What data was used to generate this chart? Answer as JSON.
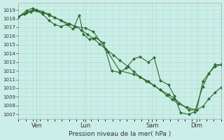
{
  "bg_color": "#cceee8",
  "grid_color": "#aaddcc",
  "line_color": "#2d6a2d",
  "xlabel": "Pression niveau de la mer( hPa )",
  "ylim": [
    1006.5,
    1019.8
  ],
  "yticks": [
    1007,
    1008,
    1009,
    1010,
    1011,
    1012,
    1013,
    1014,
    1015,
    1016,
    1017,
    1018,
    1019
  ],
  "xtick_labels": [
    "Ven",
    "Lun",
    "Sam",
    "Dim"
  ],
  "xtick_positions": [
    0.09,
    0.33,
    0.66,
    0.88
  ],
  "lines": [
    {
      "x": [
        0.0,
        0.03,
        0.06,
        0.09,
        0.12,
        0.15,
        0.18,
        0.21,
        0.25,
        0.28,
        0.31,
        0.34,
        0.37,
        0.4,
        0.43,
        0.47,
        0.5,
        0.54,
        0.57,
        0.6,
        0.63,
        0.67,
        0.7,
        0.73,
        0.76,
        0.79,
        0.83,
        0.88,
        0.91,
        0.94,
        0.97,
        1.0
      ],
      "y": [
        1018.2,
        1018.5,
        1018.8,
        1018.9,
        1018.7,
        1018.4,
        1018.1,
        1017.8,
        1017.4,
        1017.1,
        1016.7,
        1016.2,
        1015.7,
        1015.1,
        1014.5,
        1013.8,
        1013.2,
        1012.5,
        1011.9,
        1011.3,
        1010.8,
        1010.3,
        1009.8,
        1009.2,
        1008.7,
        1008.2,
        1007.8,
        1007.5,
        1007.9,
        1008.8,
        1009.5,
        1010.1
      ]
    },
    {
      "x": [
        0.0,
        0.04,
        0.07,
        0.09,
        0.12,
        0.15,
        0.18,
        0.21,
        0.24,
        0.27,
        0.3,
        0.32,
        0.35,
        0.38,
        0.42,
        0.46,
        0.5,
        0.53,
        0.57,
        0.6,
        0.64,
        0.67,
        0.7,
        0.74,
        0.77,
        0.8,
        0.84,
        0.87,
        0.91,
        0.94,
        0.97,
        1.0
      ],
      "y": [
        1018.2,
        1018.9,
        1019.2,
        1019.0,
        1018.8,
        1018.5,
        1018.1,
        1017.8,
        1017.3,
        1016.8,
        1018.4,
        1016.2,
        1015.6,
        1015.8,
        1015.2,
        1012.0,
        1011.8,
        1012.3,
        1013.4,
        1013.6,
        1013.0,
        1013.5,
        1010.9,
        1010.4,
        1009.1,
        1007.2,
        1007.0,
        1007.3,
        1010.2,
        1011.7,
        1012.7,
        1012.7
      ]
    },
    {
      "x": [
        0.0,
        0.04,
        0.07,
        0.09,
        0.12,
        0.15,
        0.18,
        0.21,
        0.25,
        0.28,
        0.33,
        0.37,
        0.44,
        0.5,
        0.57,
        0.6,
        0.64,
        0.67,
        0.7,
        0.74,
        0.77,
        0.84,
        0.88,
        0.91,
        0.94,
        0.97,
        1.0
      ],
      "y": [
        1018.2,
        1018.7,
        1019.0,
        1018.9,
        1018.5,
        1017.8,
        1017.3,
        1017.1,
        1017.4,
        1017.1,
        1016.9,
        1016.5,
        1014.2,
        1012.0,
        1011.6,
        1011.3,
        1010.8,
        1010.3,
        1009.8,
        1009.3,
        1008.8,
        1007.5,
        1007.5,
        1010.8,
        1011.7,
        1012.5,
        1012.7
      ]
    }
  ]
}
